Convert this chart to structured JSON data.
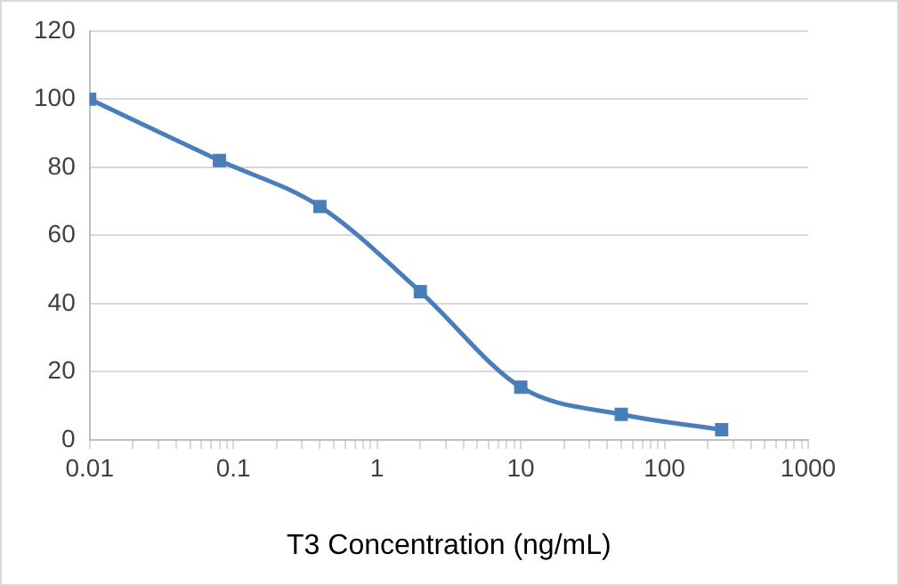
{
  "chart_data": {
    "type": "line",
    "xlabel": "T3 Concentration (ng/mL)",
    "log": "x",
    "x": [
      0.01,
      0.08,
      0.4,
      2,
      10,
      50,
      250
    ],
    "series": [
      {
        "color": "#4a7ebb",
        "values": [
          100,
          82,
          68.5,
          43.5,
          15.5,
          7.5,
          3
        ]
      }
    ],
    "xlim": [
      0.01,
      1000
    ],
    "xticks": [
      0.01,
      {
        "value": 0.02,
        "label": null
      },
      {
        "value": 0.03,
        "label": null
      },
      {
        "value": 0.04,
        "label": null
      },
      {
        "value": 0.05,
        "label": null
      },
      {
        "value": 0.06,
        "label": null
      },
      {
        "value": 0.07,
        "label": null
      },
      {
        "value": 0.08,
        "label": null
      },
      {
        "value": 0.09,
        "label": null
      },
      0.1,
      {
        "value": 0.2,
        "label": null
      },
      {
        "value": 0.3,
        "label": null
      },
      {
        "value": 0.4,
        "label": null
      },
      {
        "value": 0.5,
        "label": null
      },
      {
        "value": 0.6,
        "label": null
      },
      {
        "value": 0.7,
        "label": null
      },
      {
        "value": 0.8,
        "label": null
      },
      {
        "value": 0.9,
        "label": null
      },
      1,
      {
        "value": 2,
        "label": null
      },
      {
        "value": 3,
        "label": null
      },
      {
        "value": 4,
        "label": null
      },
      {
        "value": 5,
        "label": null
      },
      {
        "value": 6,
        "label": null
      },
      {
        "value": 7,
        "label": null
      },
      {
        "value": 8,
        "label": null
      },
      {
        "value": 9,
        "label": null
      },
      10,
      {
        "value": 20,
        "label": null
      },
      {
        "value": 30,
        "label": null
      },
      {
        "value": 40,
        "label": null
      },
      {
        "value": 50,
        "label": null
      },
      {
        "value": 60,
        "label": null
      },
      {
        "value": 70,
        "label": null
      },
      {
        "value": 80,
        "label": null
      },
      {
        "value": 90,
        "label": null
      },
      100,
      {
        "value": 200,
        "label": null
      },
      {
        "value": 300,
        "label": null
      },
      {
        "value": 400,
        "label": null
      },
      {
        "value": 500,
        "label": null
      },
      {
        "value": 600,
        "label": null
      },
      {
        "value": 700,
        "label": null
      },
      {
        "value": 800,
        "label": null
      },
      {
        "value": 900,
        "label": null
      },
      1000
    ],
    "ylim": [
      0,
      120
    ],
    "yticks": [
      0,
      20,
      40,
      60,
      80,
      100,
      120
    ],
    "grid": "y",
    "marker": "square",
    "line_style": "solid",
    "legend": false
  }
}
